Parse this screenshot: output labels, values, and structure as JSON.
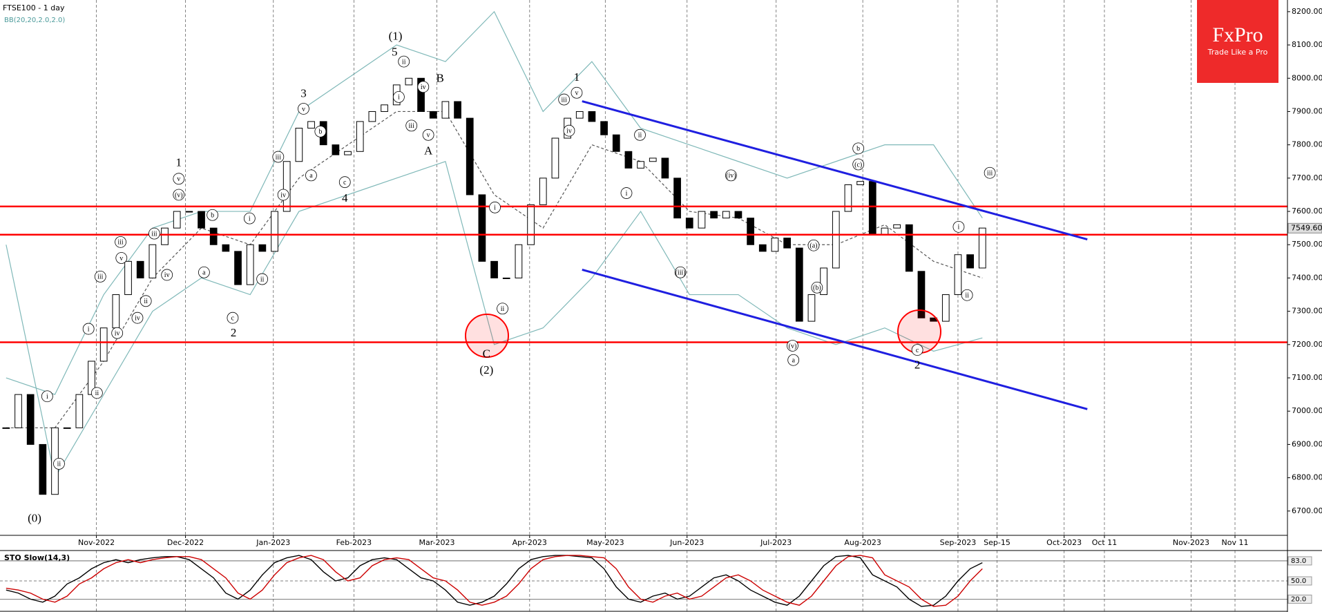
{
  "chart_data": {
    "type": "candlestick",
    "title": "FTSE100 - 1 day",
    "indicator": "BB(20,20,2.0,2.0)",
    "xlim": [
      -0.5,
      105
    ],
    "ylim": [
      6627,
      8235
    ],
    "x": [
      0,
      1,
      2,
      3,
      4,
      5,
      6,
      7,
      8,
      9,
      10,
      11,
      12,
      13,
      14,
      15,
      16,
      17,
      18,
      19,
      20,
      21,
      22,
      23,
      24,
      25,
      26,
      27,
      28,
      29,
      30,
      31,
      32,
      33,
      34,
      35,
      36,
      37,
      38,
      39,
      40,
      41,
      42,
      43,
      44,
      45,
      46,
      47,
      48,
      49,
      50,
      51,
      52,
      53,
      54,
      55,
      56,
      57,
      58,
      59,
      60,
      61,
      62,
      63,
      64,
      65,
      66,
      67,
      68,
      69,
      70,
      71,
      72,
      73,
      74,
      75,
      76,
      77,
      78,
      79,
      80
    ],
    "values": [
      6950,
      7050,
      6900,
      6750,
      6950,
      6950,
      7050,
      7150,
      7250,
      7350,
      7450,
      7400,
      7500,
      7550,
      7600,
      7600,
      7550,
      7500,
      7480,
      7380,
      7500,
      7480,
      7600,
      7750,
      7850,
      7870,
      7800,
      7770,
      7780,
      7870,
      7900,
      7920,
      7980,
      8000,
      7900,
      7880,
      7930,
      7880,
      7650,
      7450,
      7400,
      7400,
      7500,
      7620,
      7700,
      7820,
      7880,
      7900,
      7870,
      7830,
      7780,
      7730,
      7750,
      7760,
      7700,
      7580,
      7550,
      7600,
      7580,
      7600,
      7580,
      7500,
      7480,
      7520,
      7490,
      7270,
      7350,
      7430,
      7600,
      7680,
      7690,
      7530,
      7550,
      7560,
      7420,
      7280,
      7270,
      7350,
      7470,
      7430,
      7550
    ],
    "up_color": "#ffffff",
    "down_color": "#000000",
    "last_price": {
      "value": 7549.6,
      "label": "7549.60"
    },
    "yticks": [
      {
        "value": 8200,
        "label": "8200.00"
      },
      {
        "value": 8100,
        "label": "8100.00"
      },
      {
        "value": 8000,
        "label": "8000.00"
      },
      {
        "value": 7900,
        "label": "7900.00"
      },
      {
        "value": 7800,
        "label": "7800.00"
      },
      {
        "value": 7700,
        "label": "7700.00"
      },
      {
        "value": 7600,
        "label": "7600.00"
      },
      {
        "value": 7500,
        "label": "7500.00"
      },
      {
        "value": 7400,
        "label": "7400.00"
      },
      {
        "value": 7300,
        "label": "7300.00"
      },
      {
        "value": 7200,
        "label": "7200.00"
      },
      {
        "value": 7100,
        "label": "7100.00"
      },
      {
        "value": 7000,
        "label": "7000.00"
      },
      {
        "value": 6900,
        "label": "6900.00"
      },
      {
        "value": 6800,
        "label": "6800.00"
      },
      {
        "value": 6700,
        "label": "6700.00"
      }
    ],
    "xticks": [
      {
        "value": 7.4,
        "label": "Nov-2022"
      },
      {
        "value": 14.7,
        "label": "Dec-2022"
      },
      {
        "value": 21.9,
        "label": "Jan-2023"
      },
      {
        "value": 28.5,
        "label": "Feb-2023"
      },
      {
        "value": 35.3,
        "label": "Mar-2023"
      },
      {
        "value": 42.9,
        "label": "Apr-2023"
      },
      {
        "value": 49.1,
        "label": "May-2023"
      },
      {
        "value": 55.8,
        "label": "Jun-2023"
      },
      {
        "value": 63.1,
        "label": "Jul-2023"
      },
      {
        "value": 70.2,
        "label": "Aug-2023"
      },
      {
        "value": 78.0,
        "label": "Sep-2023"
      },
      {
        "value": 81.2,
        "label": "Sep-15"
      },
      {
        "value": 86.7,
        "label": "Oct-2023"
      },
      {
        "value": 90.0,
        "label": "Oct 11"
      },
      {
        "value": 97.1,
        "label": "Nov-2023"
      },
      {
        "value": 100.7,
        "label": "Nov 11"
      }
    ],
    "grid": true,
    "bands": [
      {
        "color": "#7fb8b8",
        "dash": false,
        "x": [
          0,
          4,
          8,
          12,
          16,
          20,
          24,
          28,
          32,
          36,
          40,
          44,
          48,
          52,
          56,
          60,
          64,
          68,
          72,
          76,
          80
        ],
        "values": [
          7100,
          7050,
          7350,
          7550,
          7600,
          7600,
          7900,
          8000,
          8100,
          8050,
          8200,
          7900,
          8050,
          7850,
          7800,
          7750,
          7700,
          7750,
          7800,
          7800,
          7580
        ]
      },
      {
        "color": "#555555",
        "dash": true,
        "x": [
          0,
          4,
          8,
          12,
          16,
          20,
          24,
          28,
          32,
          36,
          40,
          44,
          48,
          52,
          56,
          60,
          64,
          68,
          72,
          76,
          80
        ],
        "values": [
          6950,
          6950,
          7150,
          7400,
          7550,
          7500,
          7700,
          7800,
          7900,
          7900,
          7650,
          7550,
          7800,
          7750,
          7600,
          7580,
          7500,
          7500,
          7560,
          7450,
          7400
        ]
      },
      {
        "color": "#7fb8b8",
        "dash": false,
        "x": [
          0,
          4,
          8,
          12,
          16,
          20,
          24,
          28,
          32,
          36,
          40,
          44,
          48,
          52,
          56,
          60,
          64,
          68,
          72,
          76,
          80
        ],
        "values": [
          7500,
          6800,
          7050,
          7300,
          7400,
          7350,
          7600,
          7650,
          7700,
          7750,
          7200,
          7250,
          7400,
          7600,
          7350,
          7350,
          7250,
          7200,
          7250,
          7180,
          7220
        ]
      }
    ],
    "levels": [
      7615,
      7530,
      7207
    ],
    "level_color": "#ff0000",
    "channels": [
      {
        "x": [
          47.2,
          88.6
        ],
        "values": [
          7931,
          7516
        ]
      },
      {
        "x": [
          47.2,
          88.6
        ],
        "values": [
          7425,
          7006
        ]
      }
    ],
    "channel_color": "#1f1fe0",
    "annotations": [
      "(0)",
      "1",
      "2",
      "3",
      "4",
      "5",
      "(1)",
      "A",
      "B",
      "C",
      "(2)",
      "1",
      "2",
      "i",
      "ii",
      "i",
      "ii",
      "iii",
      "iv",
      "v",
      "iii",
      "ii",
      "iv",
      "iii",
      "iv",
      "v",
      "(v)",
      "b",
      "a",
      "c",
      "i",
      "ii",
      "iii",
      "iv",
      "v",
      "b",
      "a",
      "c",
      "ii",
      "i",
      "iii",
      "iv",
      "v",
      "i",
      "ii",
      "iii",
      "v",
      "iv",
      "ii",
      "i",
      "(iii)",
      "(iv)",
      "(a)",
      "(b)",
      "(v)",
      "a",
      "b",
      "(c)",
      "c",
      "i",
      "ii",
      "iii"
    ],
    "oscillator": {
      "title": "STO Slow(14,3)",
      "ylim": [
        0,
        100
      ],
      "yticks": [
        {
          "value": 83,
          "label": "83.0"
        },
        {
          "value": 50,
          "label": "50.0"
        },
        {
          "value": 20,
          "label": "20.0"
        }
      ],
      "series": [
        {
          "color": "#000000",
          "values": [
            35,
            30,
            20,
            15,
            25,
            45,
            55,
            70,
            80,
            85,
            80,
            85,
            88,
            90,
            90,
            85,
            70,
            55,
            30,
            20,
            35,
            60,
            80,
            88,
            92,
            85,
            65,
            50,
            55,
            75,
            85,
            88,
            85,
            70,
            55,
            50,
            35,
            15,
            10,
            15,
            25,
            45,
            70,
            85,
            90,
            92,
            92,
            90,
            88,
            70,
            40,
            20,
            15,
            25,
            30,
            20,
            25,
            40,
            55,
            60,
            50,
            35,
            25,
            15,
            10,
            25,
            50,
            75,
            90,
            92,
            88,
            60,
            50,
            40,
            20,
            8,
            10,
            25,
            50,
            70,
            80
          ]
        },
        {
          "color": "#cc0000",
          "values": [
            38,
            35,
            30,
            20,
            15,
            25,
            45,
            55,
            70,
            80,
            85,
            80,
            85,
            88,
            90,
            90,
            85,
            70,
            55,
            30,
            20,
            35,
            60,
            80,
            88,
            92,
            85,
            65,
            50,
            55,
            75,
            85,
            88,
            85,
            70,
            55,
            50,
            35,
            15,
            10,
            15,
            25,
            45,
            70,
            85,
            90,
            92,
            92,
            90,
            88,
            70,
            40,
            20,
            15,
            25,
            30,
            20,
            25,
            40,
            55,
            60,
            50,
            35,
            25,
            15,
            10,
            25,
            50,
            75,
            90,
            92,
            88,
            60,
            50,
            40,
            20,
            8,
            10,
            25,
            50,
            70
          ]
        }
      ]
    }
  }
}
